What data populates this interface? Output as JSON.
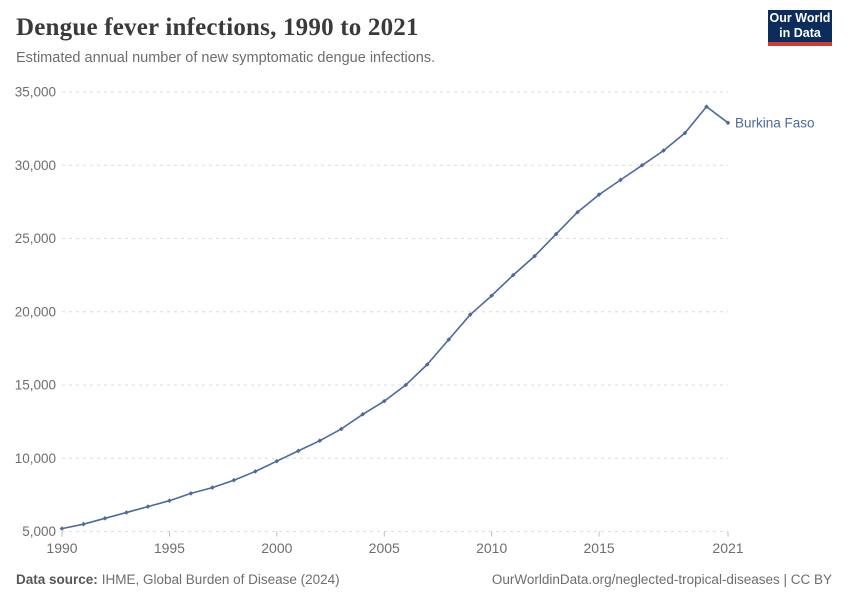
{
  "header": {
    "title": "Dengue fever infections, 1990 to 2021",
    "subtitle": "Estimated annual number of new symptomatic dengue infections."
  },
  "logo": {
    "line1": "Our World",
    "line2": "in Data",
    "bg_color": "#0c2d5c",
    "accent_color": "#cd3d34"
  },
  "footer": {
    "source_label": "Data source:",
    "source_value": "IHME, Global Burden of Disease (2024)",
    "rights": "OurWorldinData.org/neglected-tropical-diseases | CC BY"
  },
  "chart_data": {
    "type": "line",
    "title": "Dengue fever infections, 1990 to 2021",
    "subtitle": "Estimated annual number of new symptomatic dengue infections.",
    "x": [
      1990,
      1991,
      1992,
      1993,
      1994,
      1995,
      1996,
      1997,
      1998,
      1999,
      2000,
      2001,
      2002,
      2003,
      2004,
      2005,
      2006,
      2007,
      2008,
      2009,
      2010,
      2011,
      2012,
      2013,
      2014,
      2015,
      2016,
      2017,
      2018,
      2019,
      2020,
      2021
    ],
    "series": [
      {
        "name": "Burkina Faso",
        "color": "#4c6a9c",
        "values": [
          5200,
          5500,
          5900,
          6300,
          6700,
          7100,
          7600,
          8000,
          8500,
          9100,
          9800,
          10500,
          11200,
          12000,
          13000,
          13900,
          15000,
          16400,
          18100,
          19800,
          21100,
          22500,
          23800,
          25300,
          26800,
          28000,
          29000,
          30000,
          31000,
          32200,
          34000,
          32900
        ]
      }
    ],
    "xlabel": "",
    "ylabel": "",
    "xlim": [
      1990,
      2021
    ],
    "ylim": [
      5000,
      35000
    ],
    "xticks": [
      1990,
      1995,
      2000,
      2005,
      2010,
      2015,
      2021
    ],
    "yticks": [
      5000,
      10000,
      15000,
      20000,
      25000,
      30000,
      35000
    ],
    "grid": true,
    "grid_color": "#dcdcdc",
    "tick_color": "#bdbdbd",
    "axis_text_color": "#6e6e6e",
    "legend_position": "end-of-line-label"
  }
}
